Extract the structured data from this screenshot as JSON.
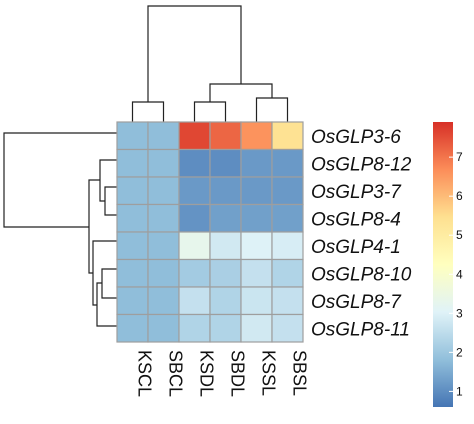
{
  "chart_data": {
    "type": "heatmap",
    "rows": [
      "OsGLP3-6",
      "OsGLP8-12",
      "OsGLP3-7",
      "OsGLP8-4",
      "OsGLP4-1",
      "OsGLP8-10",
      "OsGLP8-7",
      "OsGLP8-11"
    ],
    "columns": [
      "KSCL",
      "SBCL",
      "KSDL",
      "SBDL",
      "KSSL",
      "SBSL"
    ],
    "values": [
      [
        1.8,
        1.8,
        7.6,
        7.2,
        6.6,
        5.4
      ],
      [
        1.8,
        1.8,
        1.0,
        1.0,
        1.2,
        1.2
      ],
      [
        1.8,
        1.8,
        1.2,
        1.2,
        1.2,
        1.2
      ],
      [
        1.8,
        1.8,
        1.1,
        1.3,
        1.3,
        1.3
      ],
      [
        1.8,
        1.8,
        3.3,
        2.8,
        3.0,
        2.9
      ],
      [
        1.8,
        1.8,
        2.1,
        2.2,
        2.6,
        2.3
      ],
      [
        1.8,
        1.8,
        2.6,
        2.3,
        2.7,
        2.6
      ],
      [
        1.8,
        1.8,
        2.3,
        2.3,
        2.8,
        2.6
      ]
    ],
    "color_scale": {
      "low": "#4575b4",
      "mid": "#ffffbf",
      "high": "#d73027",
      "stops": [
        "#4575b4",
        "#91bfdb",
        "#e0f3f8",
        "#ffffbf",
        "#fee090",
        "#fc8d59",
        "#d73027"
      ],
      "min": 0.6,
      "max": 7.9
    },
    "legend_ticks": [
      {
        "value": 1,
        "label": "1"
      },
      {
        "value": 2,
        "label": "2"
      },
      {
        "value": 3,
        "label": "3"
      },
      {
        "value": 4,
        "label": "4"
      },
      {
        "value": 5,
        "label": "5"
      },
      {
        "value": 6,
        "label": "6"
      },
      {
        "value": 7,
        "label": "7"
      }
    ],
    "legend_placement": "right",
    "row_dendrogram": "left",
    "column_dendrogram": "top",
    "cell_border_color": "#9e9e9e"
  }
}
